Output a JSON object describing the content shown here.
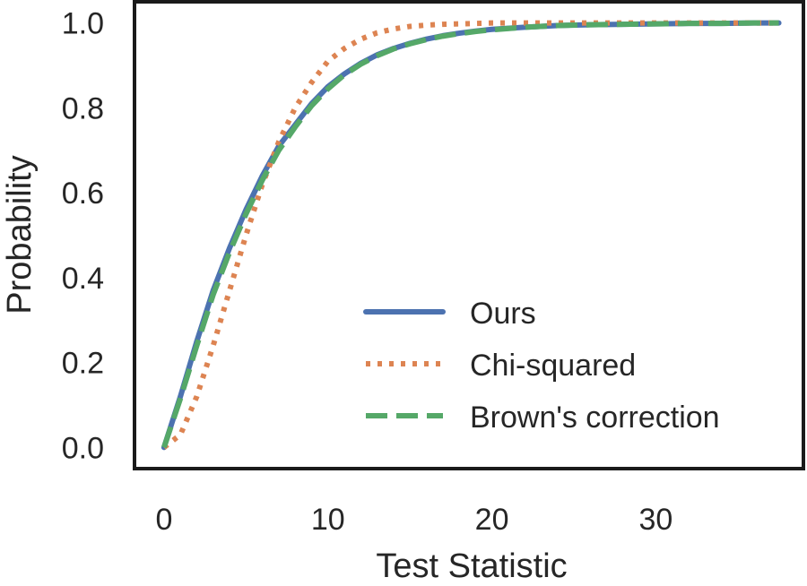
{
  "chart_data": {
    "type": "line",
    "title": "",
    "xlabel": "Test Statistic",
    "ylabel": "Probability",
    "xlim": [
      -1.8,
      39
    ],
    "ylim": [
      -0.05,
      1.05
    ],
    "xticks": [
      0,
      10,
      20,
      30
    ],
    "xtick_labels": [
      "0",
      "10",
      "20",
      "30"
    ],
    "yticks": [
      0.0,
      0.2,
      0.4,
      0.6,
      0.8,
      1.0
    ],
    "ytick_labels": [
      "0.0",
      "0.2",
      "0.4",
      "0.6",
      "0.8",
      "1.0"
    ],
    "grid": false,
    "legend_position": "lower-right",
    "x": [
      0,
      1,
      2,
      3,
      4,
      5,
      6,
      7,
      8,
      9,
      10,
      11,
      12,
      13,
      14,
      15,
      16,
      17,
      18,
      19,
      20,
      22,
      24,
      26,
      28,
      30,
      32,
      34,
      36,
      37.5
    ],
    "series": [
      {
        "name": "Ours",
        "color": "#4c72b0",
        "style": "solid",
        "values": [
          0.0,
          0.12,
          0.25,
          0.37,
          0.47,
          0.56,
          0.64,
          0.71,
          0.76,
          0.81,
          0.85,
          0.88,
          0.905,
          0.925,
          0.94,
          0.952,
          0.962,
          0.97,
          0.976,
          0.981,
          0.985,
          0.99,
          0.994,
          0.996,
          0.997,
          0.998,
          0.999,
          0.999,
          1.0,
          1.0
        ]
      },
      {
        "name": "Chi-squared",
        "color": "#dd8452",
        "style": "dotted",
        "values": [
          0.0,
          0.03,
          0.12,
          0.24,
          0.37,
          0.5,
          0.62,
          0.72,
          0.8,
          0.86,
          0.91,
          0.94,
          0.962,
          0.977,
          0.986,
          0.992,
          0.995,
          0.997,
          0.998,
          0.999,
          1.0,
          1.0,
          1.0,
          1.0,
          1.0,
          1.0,
          1.0,
          1.0,
          1.0,
          1.0
        ]
      },
      {
        "name": "Brown's correction",
        "color": "#55a868",
        "style": "dashed",
        "values": [
          0.0,
          0.115,
          0.24,
          0.36,
          0.46,
          0.55,
          0.63,
          0.7,
          0.755,
          0.805,
          0.845,
          0.878,
          0.903,
          0.923,
          0.939,
          0.951,
          0.961,
          0.969,
          0.975,
          0.98,
          0.984,
          0.99,
          0.994,
          0.996,
          0.997,
          0.998,
          0.999,
          0.999,
          1.0,
          1.0
        ]
      }
    ]
  }
}
